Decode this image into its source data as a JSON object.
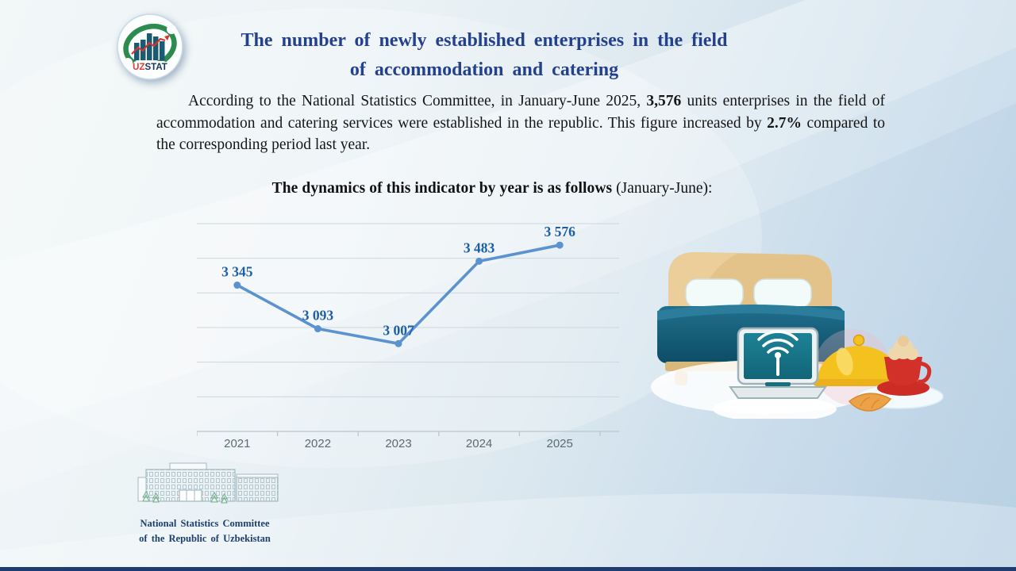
{
  "logo": {
    "uz": "UZ",
    "stat": "STAT"
  },
  "header": {
    "title_line1": "The number of newly established enterprises in the field",
    "title_line2": "of accommodation and catering"
  },
  "intro": {
    "pre": "According to the National Statistics Committee, in January-June 2025, ",
    "bold_value": "3,576",
    "mid": " units enterprises in the field of accommodation and catering services were established in the republic. This figure increased by ",
    "bold_pct": "2.7%",
    "post": " compared to the corresponding period last year."
  },
  "chart_heading": {
    "bold": "The dynamics of this indicator by year is as follows",
    "tail": " (January-June):"
  },
  "chart_data": {
    "type": "line",
    "title": "The dynamics of this indicator by year is as follows (January-June)",
    "categories": [
      "2021",
      "2022",
      "2023",
      "2024",
      "2025"
    ],
    "values": [
      3345,
      3093,
      3007,
      3483,
      3576
    ],
    "point_labels": [
      "3 345",
      "3 093",
      "3 007",
      "3 483",
      "3 576"
    ],
    "ylim": [
      2500,
      3700
    ],
    "gridline_step": 200,
    "grid": true,
    "legend": false,
    "line_color": "#5b93cf",
    "marker_color": "#5b93cf",
    "point_label_color": "#1d5ea8",
    "axis_label_color": "#5c6a72",
    "gridline_color": "#ccd7dc",
    "axis_line_color": "#b9c6cc"
  },
  "footer": {
    "line1": "National Statistics Committee",
    "line2": "of the Republic of Uzbekistan"
  },
  "colors": {
    "title_blue": "#24418e",
    "body_text": "#161616",
    "background_edge_blue": "#b7d0e3",
    "bottom_bar_navy": "#1e3c6f",
    "logo_green": "#2c8c4f",
    "logo_bar_blue": "#1b5a74",
    "logo_red": "#d9352c"
  }
}
